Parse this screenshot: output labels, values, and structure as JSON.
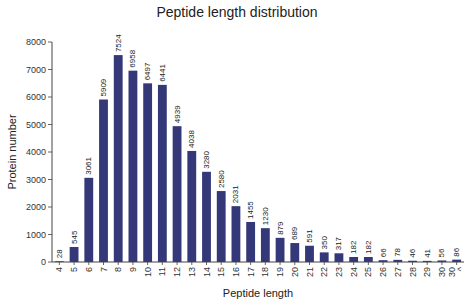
{
  "chart_data": {
    "type": "bar",
    "title": "Peptide length distribution",
    "xlabel": "Peptide length",
    "ylabel": "Protein number",
    "categories": [
      "4",
      "5",
      "6",
      "7",
      "8",
      "9",
      "10",
      "11",
      "12",
      "13",
      "14",
      "15",
      "16",
      "17",
      "18",
      "19",
      "20",
      "21",
      "22",
      "23",
      "24",
      "25",
      "26",
      "27",
      "28",
      "29",
      "30",
      "30\n^"
    ],
    "values": [
      28,
      545,
      3061,
      5909,
      7524,
      6958,
      6497,
      6441,
      4939,
      4038,
      3280,
      2580,
      2031,
      1455,
      1230,
      879,
      689,
      591,
      350,
      317,
      182,
      182,
      66,
      78,
      46,
      41,
      56,
      86
    ],
    "color": "#353878",
    "ylim": [
      0,
      8000
    ],
    "yticks": [
      0,
      1000,
      2000,
      3000,
      4000,
      5000,
      6000,
      7000,
      8000
    ],
    "data_labels": true
  }
}
